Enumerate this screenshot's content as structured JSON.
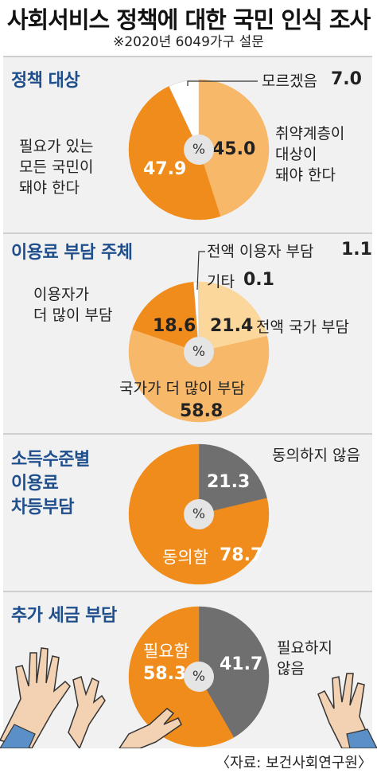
{
  "title": "사회서비스 정책에 대한 국민 인식 조사",
  "subtitle": "※2020년 6049가구 설문",
  "source": "〈자료: 보건사회연구원〉",
  "pct_symbol": "%",
  "colors": {
    "dark_orange": "#f08c1b",
    "light_orange": "#f7b86a",
    "pale_orange": "#fcd79c",
    "white": "#ffffff",
    "gray": "#6f6f6f",
    "title_blue": "#1f4e8c",
    "panel_bg": "#f1f1f1"
  },
  "chart_data": [
    {
      "type": "pie",
      "title": "정책 대상",
      "slices": [
        {
          "label": "취약계층이 대상이 돼야 한다",
          "value": 45.0,
          "value_label": "45.0",
          "color": "#f7b86a"
        },
        {
          "label": "필요가 있는 모든 국민이 돼야 한다",
          "value": 47.9,
          "value_label": "47.9",
          "color": "#f08c1b"
        },
        {
          "label": "모르겠음",
          "value": 7.0,
          "value_label": "7.0",
          "color": "#ffffff"
        }
      ]
    },
    {
      "type": "pie",
      "title": "이용료 부담 주체",
      "slices": [
        {
          "label": "전액 국가 부담",
          "value": 21.4,
          "value_label": "21.4",
          "color": "#fcd79c"
        },
        {
          "label": "국가가 더 많이 부담",
          "value": 58.8,
          "value_label": "58.8",
          "color": "#f7b86a"
        },
        {
          "label": "이용자가 더 많이 부담",
          "value": 18.6,
          "value_label": "18.6",
          "color": "#f08c1b"
        },
        {
          "label": "전액 이용자 부담",
          "value": 1.1,
          "value_label": "1.1",
          "color": "#ffffff"
        },
        {
          "label": "기타",
          "value": 0.1,
          "value_label": "0.1",
          "color": "#ffffff"
        }
      ]
    },
    {
      "type": "pie",
      "title": "소득수준별 이용료 차등부담",
      "slices": [
        {
          "label": "동의하지 않음",
          "value": 21.3,
          "value_label": "21.3",
          "color": "#6f6f6f"
        },
        {
          "label": "동의함",
          "value": 78.7,
          "value_label": "78.7",
          "color": "#f08c1b"
        }
      ]
    },
    {
      "type": "pie",
      "title": "추가 세금 부담",
      "slices": [
        {
          "label": "필요하지 않음",
          "value": 41.7,
          "value_label": "41.7",
          "color": "#6f6f6f"
        },
        {
          "label": "필요함",
          "value": 58.3,
          "value_label": "58.3",
          "color": "#f08c1b"
        }
      ]
    }
  ],
  "labels": {
    "p1_unknown": "모르겠음",
    "p1_vuln_lines": [
      "취약계층이",
      "대상이",
      "돼야 한다"
    ],
    "p1_all_lines": [
      "필요가 있는",
      "모든 국민이",
      "돼야 한다"
    ],
    "p2_full_user": "전액 이용자 부담",
    "p2_etc": "기타",
    "p2_user_more_lines": [
      "이용자가",
      "더 많이 부담"
    ],
    "p2_full_state": "전액 국가 부담",
    "p2_state_more": "국가가 더 많이 부담",
    "p3_title_lines": [
      "소득수준별",
      "이용료",
      "차등부담"
    ],
    "p3_disagree": "동의하지 않음",
    "p3_agree": "동의함",
    "p4_need_not_lines": [
      "필요하지",
      "않음"
    ],
    "p4_need": "필요함"
  }
}
